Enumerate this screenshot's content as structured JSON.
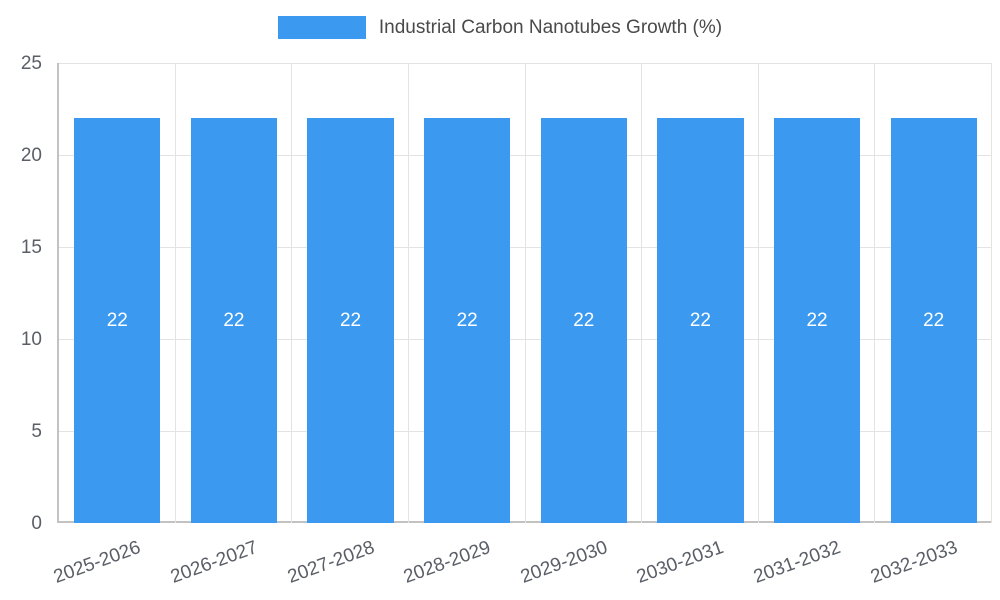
{
  "chart_data": {
    "type": "bar",
    "title": "Industrial Carbon Nanotubes Growth (%)",
    "categories": [
      "2025-2026",
      "2026-2027",
      "2027-2028",
      "2028-2029",
      "2029-2030",
      "2030-2031",
      "2031-2032",
      "2032-2033"
    ],
    "values": [
      22,
      22,
      22,
      22,
      22,
      22,
      22,
      22
    ],
    "data_labels": [
      "22",
      "22",
      "22",
      "22",
      "22",
      "22",
      "22",
      "22"
    ],
    "xlabel": "",
    "ylabel": "",
    "ylim": [
      0,
      25
    ],
    "yticks": [
      0,
      5,
      10,
      15,
      20,
      25
    ],
    "grid": "on",
    "legend_position": "top",
    "colors": {
      "bar": "#3b9af0",
      "bar_label": "#ffffff",
      "grid": "#e3e3e3",
      "axis": "#c2c2c2",
      "tick_text": "#5a5e66"
    }
  }
}
